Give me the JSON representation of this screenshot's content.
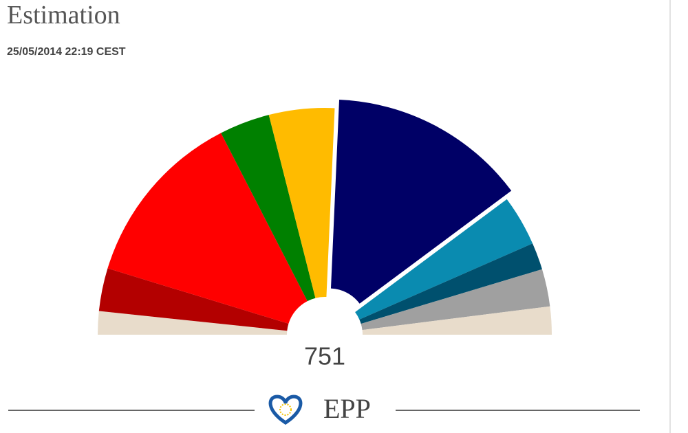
{
  "chart_data": {
    "type": "pie",
    "title": "Estimation",
    "subtitle": "25/05/2014 22:19 CEST",
    "total": 751,
    "values": [
      25,
      46,
      191,
      54,
      70,
      212,
      54,
      29,
      40,
      30
    ],
    "colors": [
      "#e8dccb",
      "#b30000",
      "#ff0000",
      "#008000",
      "#ffbb00",
      "#000066",
      "#0a8bb0",
      "#00506e",
      "#a0a0a0",
      "#e8dccb"
    ],
    "explode": 5,
    "selected_label": "EPP"
  }
}
